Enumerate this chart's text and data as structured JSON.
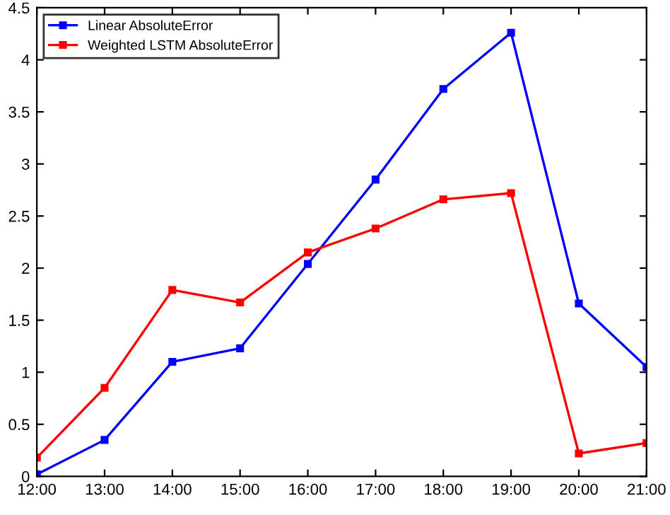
{
  "chart_data": {
    "type": "line",
    "x": [
      12,
      13,
      14,
      15,
      16,
      17,
      18,
      19,
      20,
      21
    ],
    "series": [
      {
        "name": "Linear AbsoluteError",
        "color": "#0000ff",
        "values": [
          0.02,
          0.35,
          1.1,
          1.23,
          2.04,
          2.85,
          3.72,
          4.26,
          1.66,
          1.05
        ]
      },
      {
        "name": "Weighted LSTM AbsoluteError",
        "color": "#ff0000",
        "values": [
          0.18,
          0.85,
          1.79,
          1.67,
          2.15,
          2.38,
          2.66,
          2.72,
          0.22,
          0.32
        ]
      }
    ],
    "xlim": [
      12,
      21
    ],
    "ylim": [
      0,
      4.5
    ],
    "xticks": [
      {
        "value": 12,
        "label": "12:00"
      },
      {
        "value": 13,
        "label": "13:00"
      },
      {
        "value": 14,
        "label": "14:00"
      },
      {
        "value": 15,
        "label": "15:00"
      },
      {
        "value": 16,
        "label": "16:00"
      },
      {
        "value": 17,
        "label": "17:00"
      },
      {
        "value": 18,
        "label": "18:00"
      },
      {
        "value": 19,
        "label": "19:00"
      },
      {
        "value": 20,
        "label": "20:00"
      },
      {
        "value": 21,
        "label": "21:00"
      }
    ],
    "yticks": [
      0,
      0.5,
      1,
      1.5,
      2,
      2.5,
      3,
      3.5,
      4,
      4.5
    ],
    "marker": "square",
    "line_style": "solid",
    "legend": "top left",
    "grid": false
  }
}
